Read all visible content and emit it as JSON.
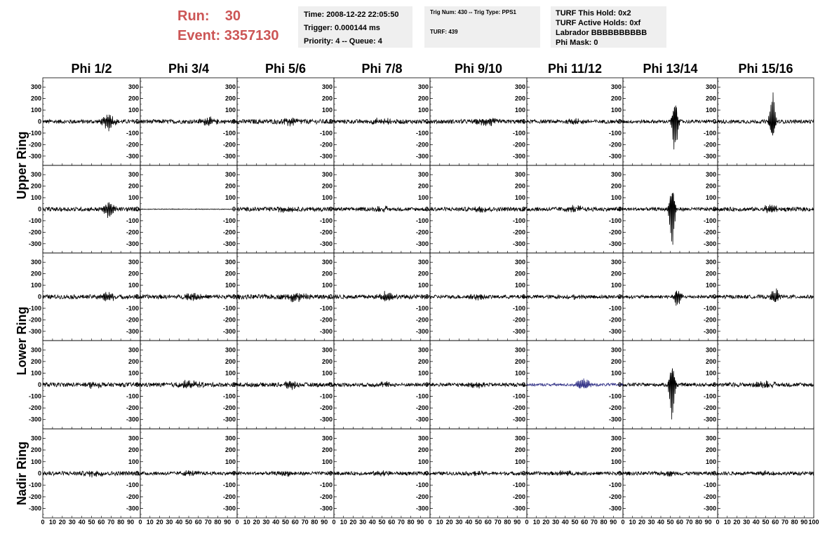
{
  "header": {
    "run_label": "Run:",
    "run_value": "30",
    "event_label": "Event:",
    "event_value": "3357130"
  },
  "info_time": {
    "time": "Time: 2008-12-22 22:05:50",
    "trigger": "Trigger: 0.000144 ms",
    "priority": "Priority: 4 -- Queue: 4"
  },
  "info_trig": {
    "trig": "Trig Num: 430 -- Trig Type: PPS1",
    "turf": "TURF: 439"
  },
  "info_turf": {
    "hold": "TURF This Hold: 0x2",
    "active": "TURF Active Holds: 0xf",
    "labrador": "Labrador BBBBBBBBBB",
    "phimask": "Phi Mask: 0"
  },
  "colors": {
    "header_text": "#cc5555",
    "trace": "#000000",
    "highlight_trace": "#333388"
  },
  "chart_data": {
    "type": "line",
    "columns": [
      "Phi 1/2",
      "Phi 3/4",
      "Phi 5/6",
      "Phi 7/8",
      "Phi 9/10",
      "Phi 11/12",
      "Phi 13/14",
      "Phi 15/16"
    ],
    "ring_labels": [
      {
        "text": "Upper Ring",
        "rows": [
          0,
          1
        ]
      },
      {
        "text": "Lower Ring",
        "rows": [
          2,
          3
        ]
      },
      {
        "text": "Nadir Ring",
        "rows": [
          4
        ]
      }
    ],
    "ylim": [
      -350,
      350
    ],
    "xlim": [
      0,
      100
    ],
    "yticks": [
      -300,
      -200,
      -100,
      0,
      100,
      200,
      300
    ],
    "ytick_labels": [
      "-300",
      "-200",
      "-100",
      "0",
      "100",
      "200",
      "300"
    ],
    "xticks": [
      0,
      10,
      20,
      30,
      40,
      50,
      60,
      70,
      80,
      90,
      100
    ],
    "xtick_labels": [
      "0",
      "10",
      "20",
      "30",
      "40",
      "50",
      "60",
      "70",
      "80",
      "90",
      "100"
    ],
    "highlight_panel": {
      "row": 3,
      "col": 5
    },
    "panels": [
      [
        {
          "noise": 18,
          "burst_center": 68,
          "burst_amp": 80,
          "burst_width": 6
        },
        {
          "noise": 18,
          "burst_center": 70,
          "burst_amp": 35,
          "burst_width": 8
        },
        {
          "noise": 20,
          "burst_center": 55,
          "burst_amp": 30,
          "burst_width": 10
        },
        {
          "noise": 18,
          "burst_center": 50,
          "burst_amp": 25,
          "burst_width": 10
        },
        {
          "noise": 18,
          "burst_center": 60,
          "burst_amp": 35,
          "burst_width": 10
        },
        {
          "noise": 16,
          "burst_center": 50,
          "burst_amp": 20,
          "burst_width": 10
        },
        {
          "noise": 15,
          "burst_center": 55,
          "burst_amp": 290,
          "burst_width": 3
        },
        {
          "noise": 16,
          "burst_center": 57,
          "burst_amp": 260,
          "burst_width": 3
        }
      ],
      [
        {
          "noise": 18,
          "burst_center": 68,
          "burst_amp": 90,
          "burst_width": 5
        },
        {
          "noise": 3,
          "burst_center": 50,
          "burst_amp": 0,
          "burst_width": 5
        },
        {
          "noise": 18,
          "burst_center": 50,
          "burst_amp": 20,
          "burst_width": 10
        },
        {
          "noise": 16,
          "burst_center": 50,
          "burst_amp": 20,
          "burst_width": 10
        },
        {
          "noise": 18,
          "burst_center": 50,
          "burst_amp": 25,
          "burst_width": 10
        },
        {
          "noise": 18,
          "burst_center": 50,
          "burst_amp": 25,
          "burst_width": 10
        },
        {
          "noise": 15,
          "burst_center": 52,
          "burst_amp": 320,
          "burst_width": 3
        },
        {
          "noise": 18,
          "burst_center": 55,
          "burst_amp": 40,
          "burst_width": 8
        }
      ],
      [
        {
          "noise": 18,
          "burst_center": 65,
          "burst_amp": 40,
          "burst_width": 10
        },
        {
          "noise": 18,
          "burst_center": 55,
          "burst_amp": 30,
          "burst_width": 10
        },
        {
          "noise": 20,
          "burst_center": 60,
          "burst_amp": 40,
          "burst_width": 10
        },
        {
          "noise": 18,
          "burst_center": 55,
          "burst_amp": 45,
          "burst_width": 8
        },
        {
          "noise": 16,
          "burst_center": 50,
          "burst_amp": 20,
          "burst_width": 10
        },
        {
          "noise": 16,
          "burst_center": 50,
          "burst_amp": 20,
          "burst_width": 10
        },
        {
          "noise": 14,
          "burst_center": 58,
          "burst_amp": 90,
          "burst_width": 4
        },
        {
          "noise": 16,
          "burst_center": 60,
          "burst_amp": 70,
          "burst_width": 5
        }
      ],
      [
        {
          "noise": 18,
          "burst_center": 50,
          "burst_amp": 25,
          "burst_width": 10
        },
        {
          "noise": 18,
          "burst_center": 50,
          "burst_amp": 35,
          "burst_width": 12
        },
        {
          "noise": 18,
          "burst_center": 55,
          "burst_amp": 40,
          "burst_width": 6
        },
        {
          "noise": 16,
          "burst_center": 50,
          "burst_amp": 20,
          "burst_width": 10
        },
        {
          "noise": 16,
          "burst_center": 50,
          "burst_amp": 20,
          "burst_width": 10
        },
        {
          "noise": 12,
          "burst_center": 58,
          "burst_amp": 50,
          "burst_width": 8
        },
        {
          "noise": 15,
          "burst_center": 52,
          "burst_amp": 300,
          "burst_width": 3
        },
        {
          "noise": 18,
          "burst_center": 50,
          "burst_amp": 25,
          "burst_width": 10
        }
      ],
      [
        {
          "noise": 18,
          "burst_center": 55,
          "burst_amp": 25,
          "burst_width": 10
        },
        {
          "noise": 15,
          "burst_center": 50,
          "burst_amp": 15,
          "burst_width": 10
        },
        {
          "noise": 15,
          "burst_center": 50,
          "burst_amp": 15,
          "burst_width": 10
        },
        {
          "noise": 15,
          "burst_center": 50,
          "burst_amp": 15,
          "burst_width": 10
        },
        {
          "noise": 15,
          "burst_center": 50,
          "burst_amp": 15,
          "burst_width": 10
        },
        {
          "noise": 15,
          "burst_center": 40,
          "burst_amp": 20,
          "burst_width": 8
        },
        {
          "noise": 15,
          "burst_center": 50,
          "burst_amp": 15,
          "burst_width": 10
        },
        {
          "noise": 15,
          "burst_center": 50,
          "burst_amp": 15,
          "burst_width": 10
        }
      ]
    ]
  }
}
